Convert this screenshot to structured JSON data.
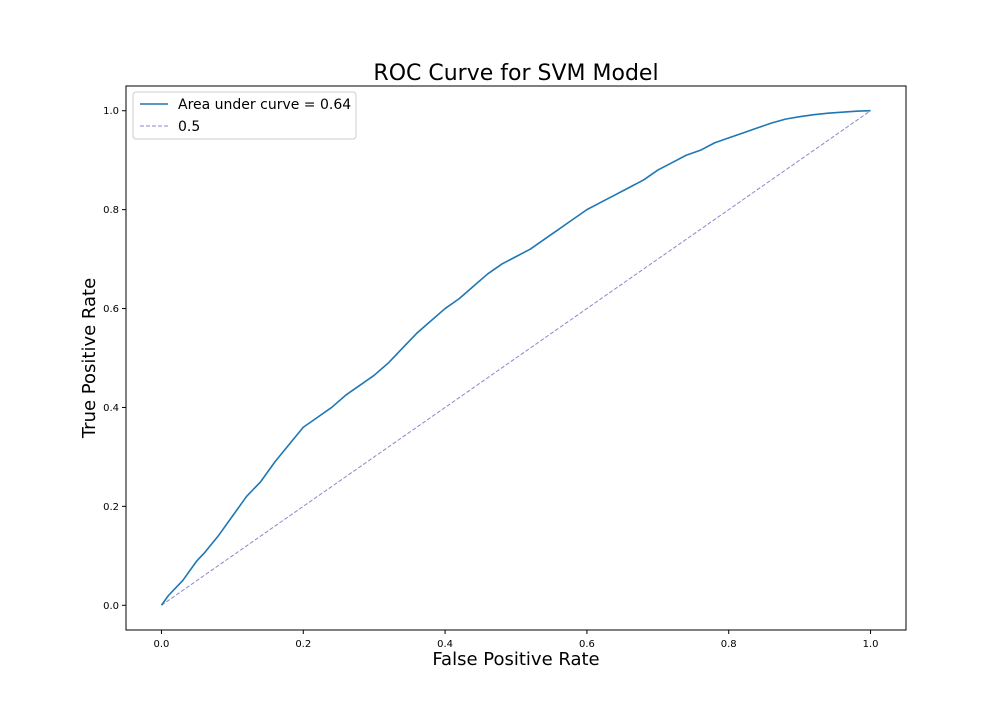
{
  "chart_data": {
    "type": "line",
    "title": "ROC Curve for SVM Model",
    "xlabel": "False Positive Rate",
    "ylabel": "True Positive Rate",
    "xlim": [
      -0.05,
      1.05
    ],
    "ylim": [
      -0.05,
      1.05
    ],
    "xticks": [
      0.0,
      0.2,
      0.4,
      0.6,
      0.8,
      1.0
    ],
    "yticks": [
      0.0,
      0.2,
      0.4,
      0.6,
      0.8,
      1.0
    ],
    "tick_labels_x": [
      "0.0",
      "0.2",
      "0.4",
      "0.6",
      "0.8",
      "1.0"
    ],
    "tick_labels_y": [
      "0.0",
      "0.2",
      "0.4",
      "0.6",
      "0.8",
      "1.0"
    ],
    "grid": false,
    "legend_position": "top-left",
    "series": [
      {
        "name": "Area under curve = 0.64",
        "style": "solid",
        "color": "#1f77b4",
        "x": [
          0.0,
          0.01,
          0.02,
          0.03,
          0.04,
          0.05,
          0.06,
          0.08,
          0.1,
          0.12,
          0.14,
          0.16,
          0.18,
          0.2,
          0.22,
          0.24,
          0.26,
          0.28,
          0.3,
          0.32,
          0.34,
          0.36,
          0.38,
          0.4,
          0.42,
          0.44,
          0.46,
          0.48,
          0.5,
          0.52,
          0.54,
          0.56,
          0.58,
          0.6,
          0.62,
          0.64,
          0.66,
          0.68,
          0.7,
          0.72,
          0.74,
          0.76,
          0.78,
          0.8,
          0.82,
          0.84,
          0.86,
          0.88,
          0.9,
          0.92,
          0.94,
          0.96,
          0.98,
          1.0
        ],
        "y": [
          0.0,
          0.02,
          0.035,
          0.05,
          0.07,
          0.09,
          0.105,
          0.14,
          0.18,
          0.22,
          0.25,
          0.29,
          0.325,
          0.36,
          0.38,
          0.4,
          0.425,
          0.445,
          0.465,
          0.49,
          0.52,
          0.55,
          0.575,
          0.6,
          0.62,
          0.645,
          0.67,
          0.69,
          0.705,
          0.72,
          0.74,
          0.76,
          0.78,
          0.8,
          0.815,
          0.83,
          0.845,
          0.86,
          0.88,
          0.895,
          0.91,
          0.92,
          0.935,
          0.945,
          0.955,
          0.965,
          0.975,
          0.983,
          0.988,
          0.992,
          0.995,
          0.997,
          0.999,
          1.0
        ]
      },
      {
        "name": "0.5",
        "style": "dashed",
        "color": "#8888cc",
        "x": [
          0.0,
          1.0
        ],
        "y": [
          0.0,
          1.0
        ]
      }
    ]
  }
}
